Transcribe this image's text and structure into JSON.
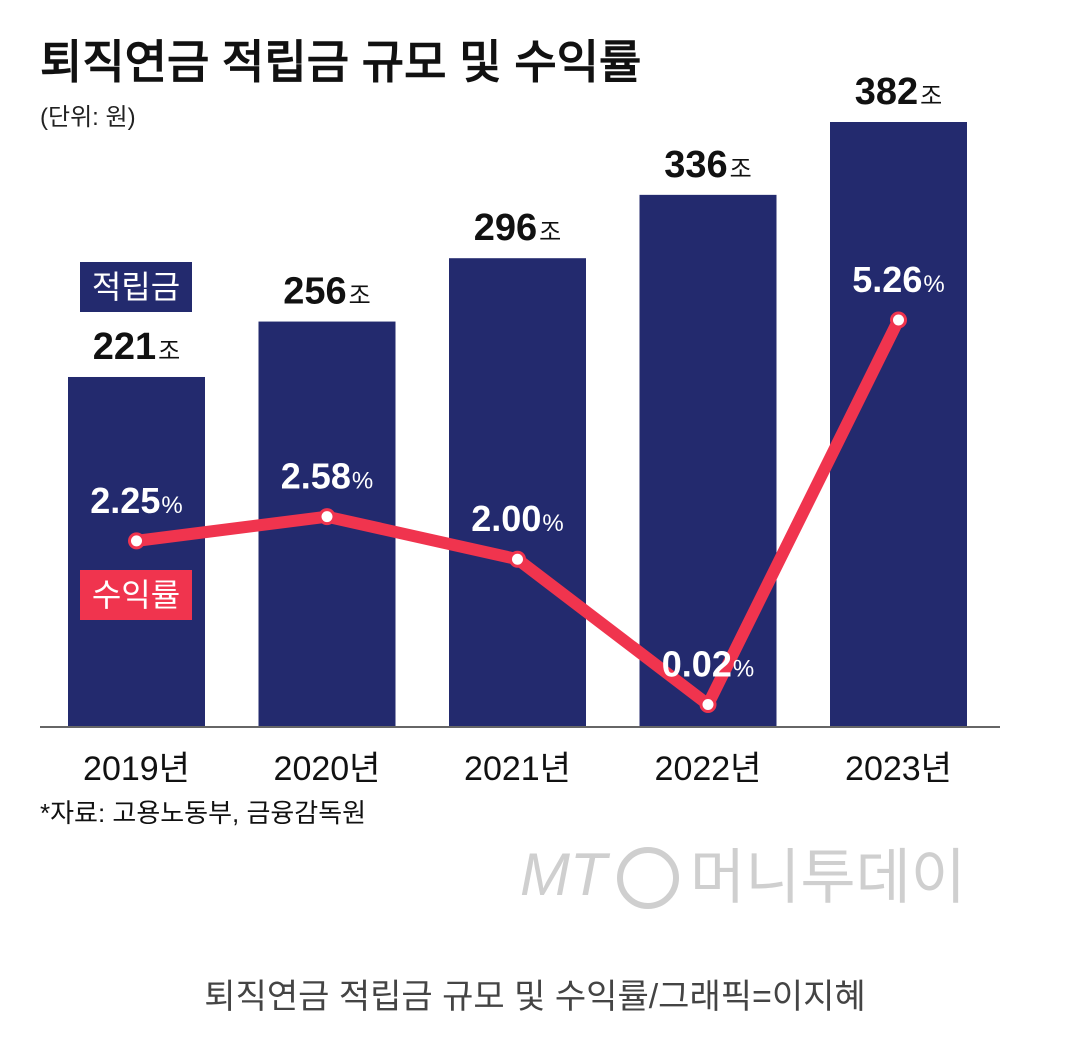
{
  "title": "퇴직연금 적립금 규모 및 수익률",
  "unit_note": "(단위: 원)",
  "source_note": "*자료: 고용노동부, 금융감독원",
  "caption": "퇴직연금 적립금 규모 및 수익률/그래픽=이지혜",
  "watermark": {
    "mt": "MT",
    "brand": "머니투데이"
  },
  "colors": {
    "bars": "#232a6e",
    "line": "#f0344e",
    "text": "#111111"
  },
  "chart_data": {
    "type": "bar",
    "categories": [
      "2019년",
      "2020년",
      "2021년",
      "2022년",
      "2023년"
    ],
    "series": [
      {
        "name": "적립금",
        "type": "bar",
        "values": [
          221,
          256,
          296,
          336,
          382
        ],
        "labels": [
          "221",
          "256",
          "296",
          "336",
          "382"
        ],
        "label_suffix": "조"
      },
      {
        "name": "수익률",
        "type": "line",
        "values": [
          2.25,
          2.58,
          2.0,
          0.02,
          5.26
        ],
        "labels": [
          "2.25",
          "2.58",
          "2.00",
          "0.02",
          "5.26"
        ],
        "label_suffix": "%"
      }
    ],
    "ylim_bar": [
      0,
      400
    ],
    "ylim_line": [
      0,
      6.5
    ],
    "legend": [
      "적립금",
      "수익률"
    ],
    "grid": false
  }
}
